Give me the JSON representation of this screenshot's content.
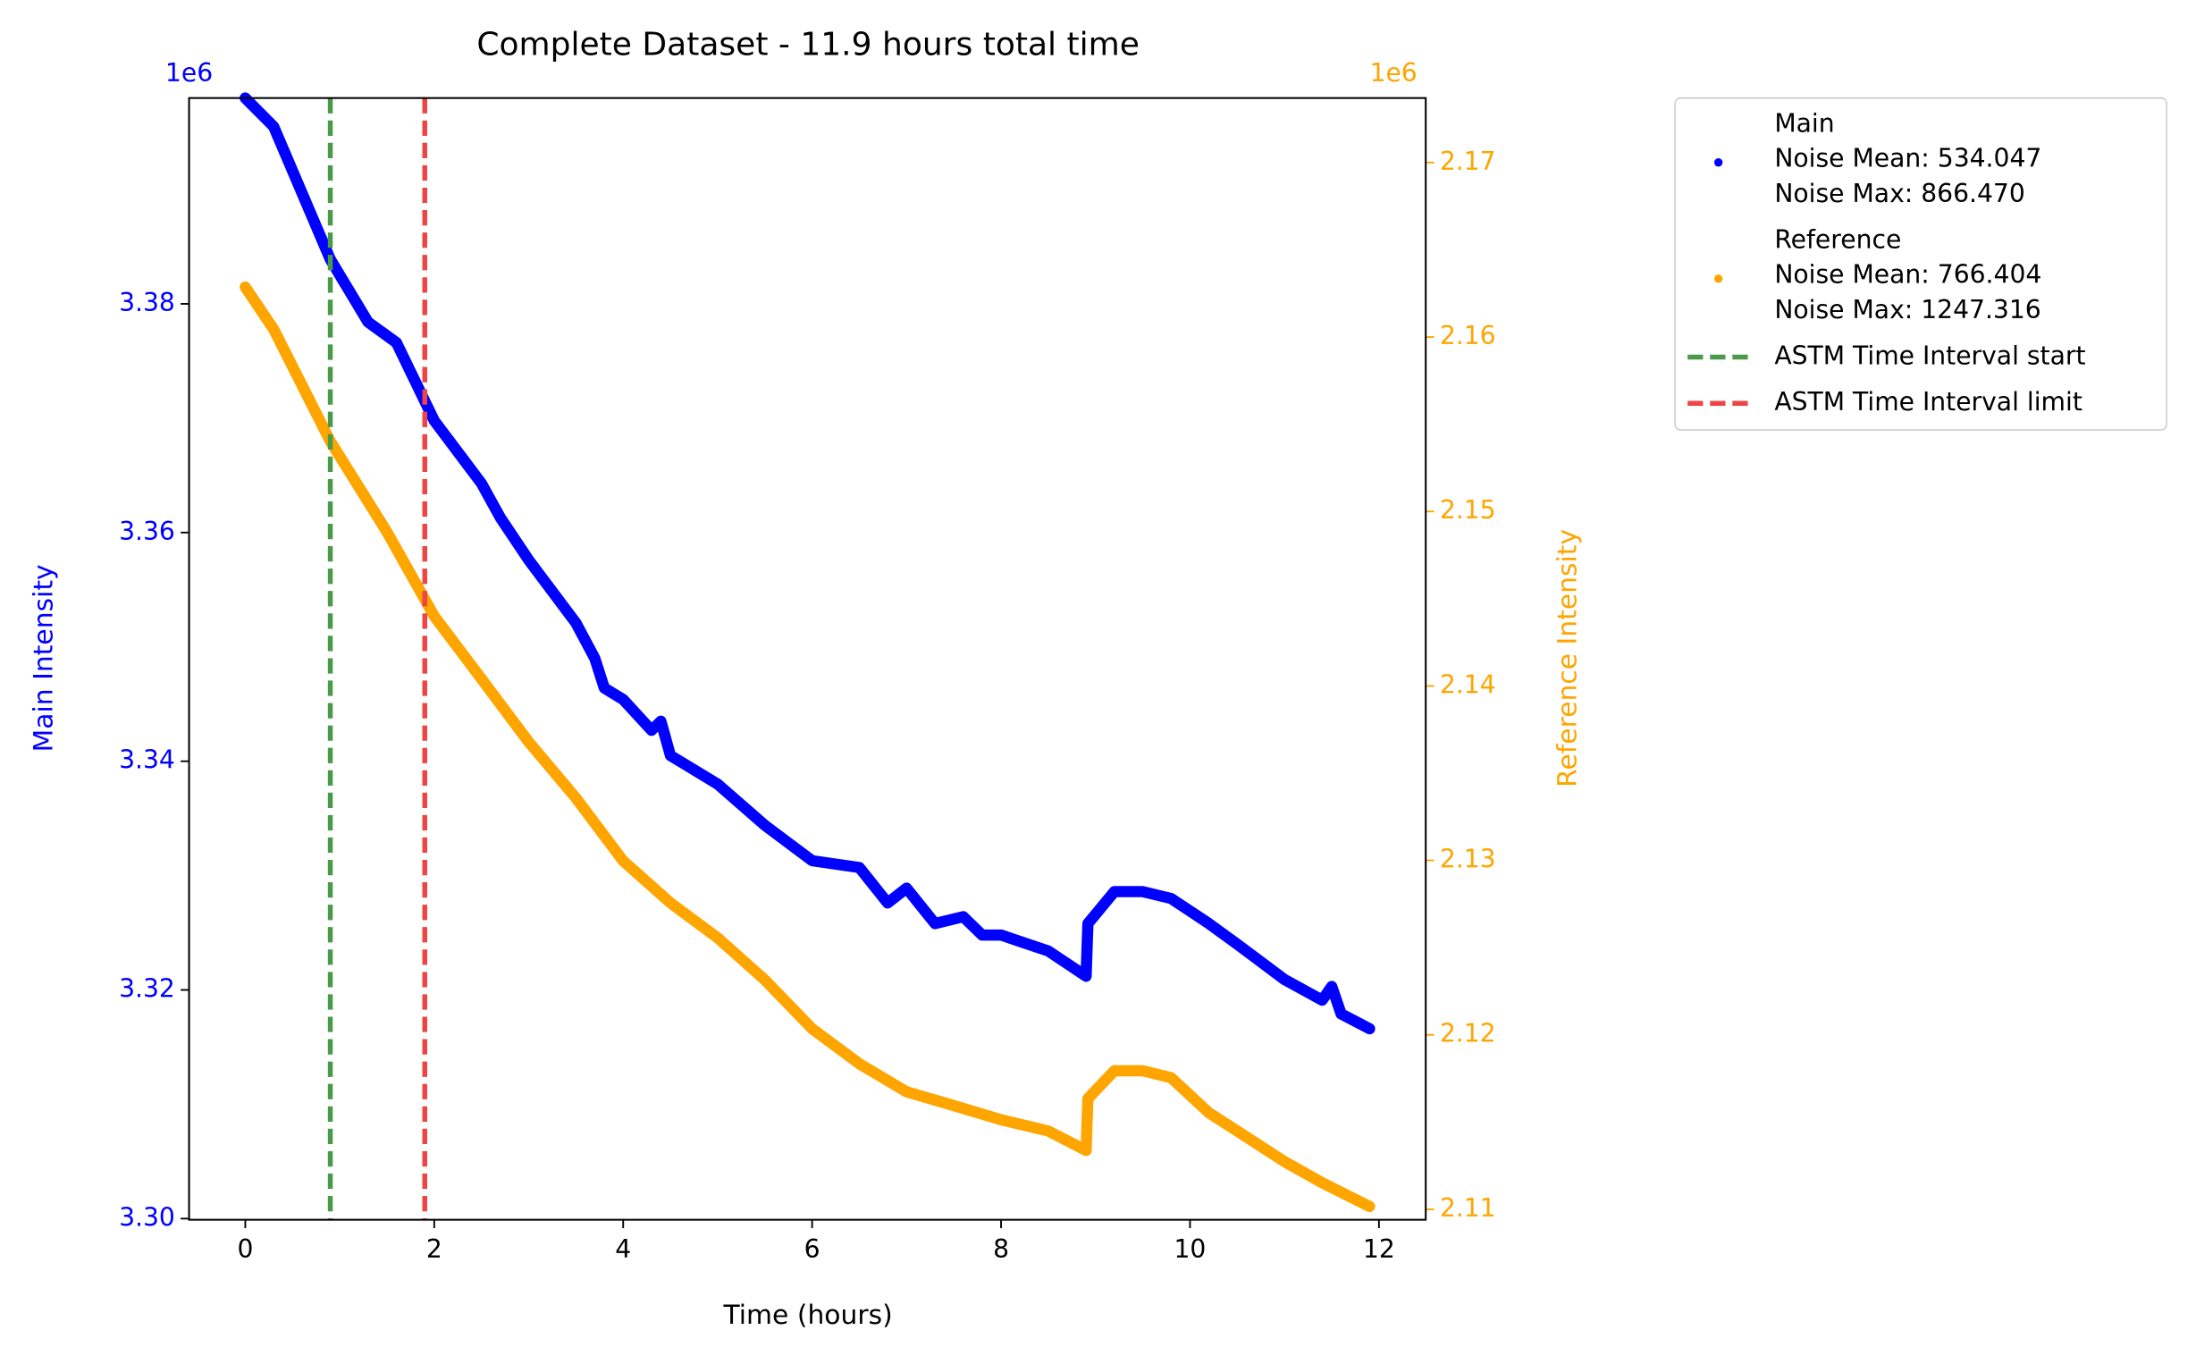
{
  "chart_data": {
    "type": "line",
    "title": "Complete Dataset - 11.9 hours total time",
    "xlabel": "Time (hours)",
    "ylabel": "Main Intensity",
    "y2label": "Reference Intensity",
    "yoffset": "1e6",
    "y2offset": "1e6",
    "xlim": [
      -0.595,
      12.495
    ],
    "xticks": [
      0,
      2,
      4,
      6,
      8,
      10,
      12
    ],
    "ylim": [
      3.2999,
      3.398
    ],
    "yticks": [
      {
        "value": 3.3,
        "label": "3.30"
      },
      3.32,
      3.34,
      3.36,
      3.38
    ],
    "y2lim": [
      2.1094,
      2.1737
    ],
    "y2ticks": [
      2.11,
      2.12,
      2.13,
      2.14,
      2.15,
      2.16,
      2.17
    ],
    "ycolor": "blue",
    "y2color": "orange",
    "legend": "outside upper right",
    "series": [
      {
        "name": "Main",
        "legend_details": [
          "Noise Mean: 534.047",
          "Noise Max: 866.470"
        ],
        "color": "#0000ff",
        "x": [
          0,
          0.3,
          0.9,
          1.3,
          1.6,
          2,
          2.5,
          2.7,
          3,
          3.5,
          3.7,
          3.8,
          4,
          4.3,
          4.4,
          4.5,
          5,
          5.5,
          6,
          6.5,
          6.8,
          7,
          7.3,
          7.6,
          7.8,
          8,
          8.5,
          8.9,
          8.92,
          9.2,
          9.5,
          9.8,
          10.2,
          10.5,
          11,
          11.4,
          11.5,
          11.6,
          11.9
        ],
        "values": [
          3.398,
          3.3955,
          3.3839,
          3.3784,
          3.3766,
          3.3698,
          3.3643,
          3.3613,
          3.3576,
          3.3521,
          3.349,
          3.3464,
          3.3454,
          3.3427,
          3.3435,
          3.3405,
          3.338,
          3.3344,
          3.3313,
          3.3307,
          3.3276,
          3.3289,
          3.3258,
          3.3264,
          3.3248,
          3.3248,
          3.3234,
          3.3212,
          3.3258,
          3.3286,
          3.3286,
          3.328,
          3.3258,
          3.324,
          3.3209,
          3.3191,
          3.3203,
          3.3179,
          3.3166
        ]
      },
      {
        "name": "Reference",
        "legend_details": [
          "Noise Mean: 766.404",
          "Noise Max: 1247.316"
        ],
        "color": "#ffa500",
        "axis": "y2",
        "x": [
          0,
          0.3,
          0.9,
          1.5,
          2,
          2.5,
          3,
          3.5,
          4,
          4.5,
          5,
          5.5,
          6,
          6.5,
          7,
          7.5,
          8,
          8.5,
          8.9,
          8.92,
          9.2,
          9.5,
          9.8,
          10.2,
          10.5,
          11,
          11.4,
          11.9
        ],
        "values": [
          2.16286,
          2.16045,
          2.15403,
          2.14882,
          2.14401,
          2.1404,
          2.13679,
          2.13358,
          2.12997,
          2.12757,
          2.12556,
          2.12315,
          2.12035,
          2.11834,
          2.11674,
          2.11594,
          2.11513,
          2.11449,
          2.11337,
          2.11634,
          2.11794,
          2.11794,
          2.11754,
          2.11553,
          2.11449,
          2.11273,
          2.11152,
          2.11016
        ]
      }
    ],
    "vlines": [
      {
        "name": "ASTM Time Interval start",
        "x": 0.9,
        "color": "#4a9a4a"
      },
      {
        "name": "ASTM Time Interval limit",
        "x": 1.9,
        "color": "#ee4444"
      }
    ]
  }
}
